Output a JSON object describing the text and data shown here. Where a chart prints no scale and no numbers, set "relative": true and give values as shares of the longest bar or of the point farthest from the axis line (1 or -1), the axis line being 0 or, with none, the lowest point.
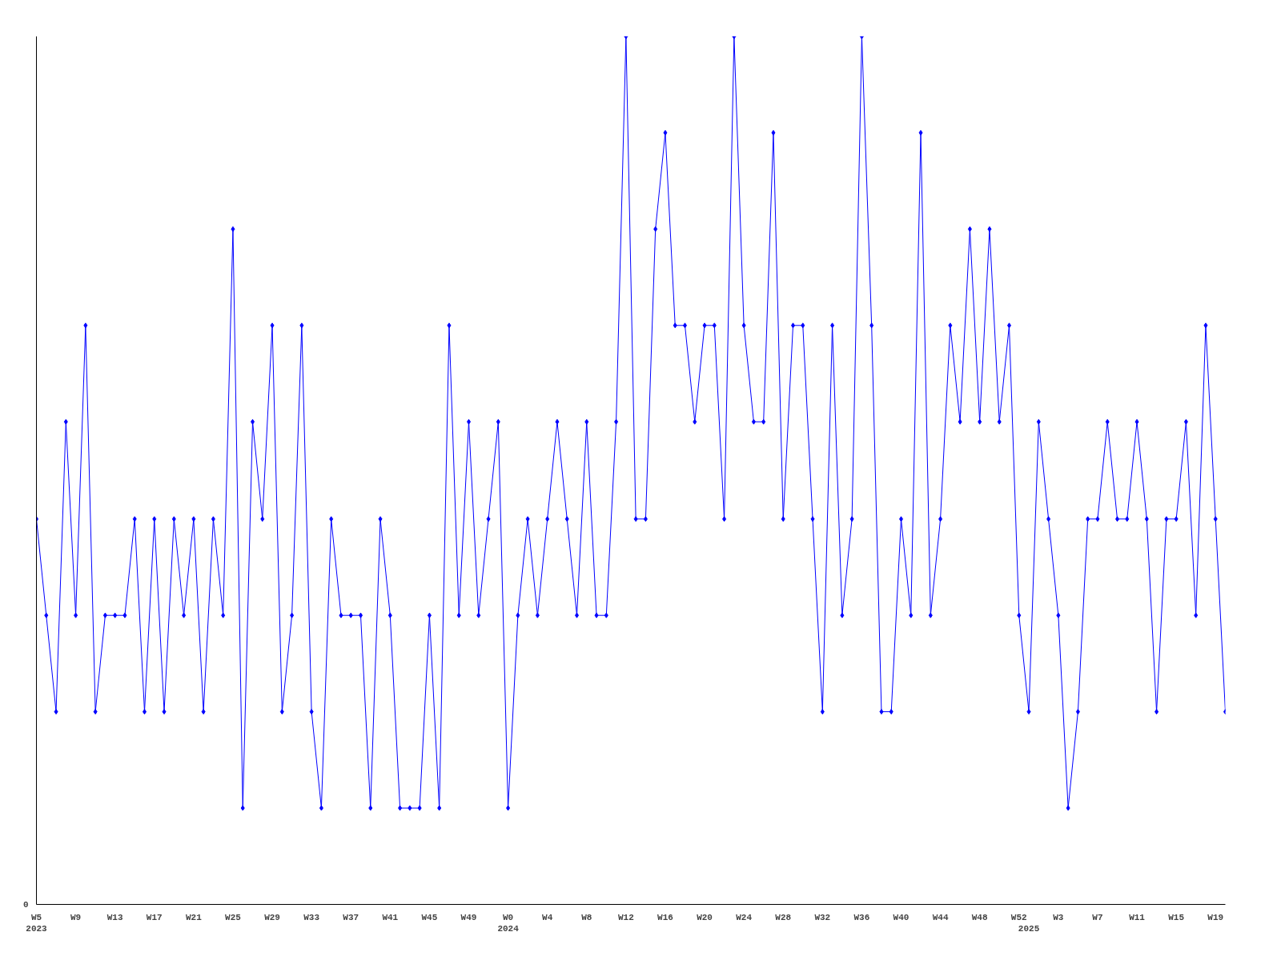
{
  "chart_data": {
    "type": "line",
    "relative": true,
    "annotations": [
      "0"
    ],
    "marker": "diamond",
    "line_style": "solid",
    "grid": false,
    "categories": [
      "W5\n2023",
      null,
      null,
      null,
      "W9",
      null,
      null,
      null,
      "W13",
      null,
      null,
      null,
      "W17",
      null,
      null,
      null,
      "W21",
      null,
      null,
      null,
      "W25",
      null,
      null,
      null,
      "W29",
      null,
      null,
      null,
      "W33",
      null,
      null,
      null,
      "W37",
      null,
      null,
      null,
      "W41",
      null,
      null,
      null,
      "W45",
      null,
      null,
      null,
      "W49",
      null,
      null,
      null,
      "W0\n2024",
      null,
      null,
      null,
      "W4",
      null,
      null,
      null,
      "W8",
      null,
      null,
      null,
      "W12",
      null,
      null,
      null,
      "W16",
      null,
      null,
      null,
      "W20",
      null,
      null,
      null,
      "W24",
      null,
      null,
      null,
      "W28",
      null,
      null,
      null,
      "W32",
      null,
      null,
      null,
      "W36",
      null,
      null,
      null,
      "W40",
      null,
      null,
      null,
      "W44",
      null,
      null,
      null,
      "W48",
      null,
      null,
      null,
      "W52",
      "\n2025",
      null,
      null,
      "W3",
      null,
      null,
      null,
      "W7",
      null,
      null,
      null,
      "W11",
      null,
      null,
      null,
      "W15",
      null,
      null,
      null,
      "W19",
      null
    ],
    "series": [
      {
        "color": "#0000ff",
        "values": [
          0.444,
          0.333,
          0.222,
          0.556,
          0.333,
          0.667,
          0.222,
          0.333,
          0.333,
          0.333,
          0.444,
          0.222,
          0.444,
          0.222,
          0.444,
          0.333,
          0.444,
          0.222,
          0.444,
          0.333,
          0.778,
          0.111,
          0.556,
          0.444,
          0.667,
          0.222,
          0.333,
          0.667,
          0.222,
          0.111,
          0.444,
          0.333,
          0.333,
          0.333,
          0.111,
          0.444,
          0.333,
          0.111,
          0.111,
          0.111,
          0.333,
          0.111,
          0.667,
          0.333,
          0.556,
          0.333,
          0.444,
          0.556,
          0.111,
          0.333,
          0.444,
          0.333,
          0.444,
          0.556,
          0.444,
          0.333,
          0.556,
          0.333,
          0.333,
          0.556,
          1,
          0.444,
          0.444,
          0.778,
          0.889,
          0.667,
          0.667,
          0.556,
          0.667,
          0.667,
          0.444,
          1,
          0.667,
          0.556,
          0.556,
          0.889,
          0.444,
          0.667,
          0.667,
          0.444,
          0.222,
          0.667,
          0.333,
          0.444,
          1,
          0.667,
          0.222,
          0.222,
          0.444,
          0.333,
          0.889,
          0.333,
          0.444,
          0.667,
          0.556,
          0.778,
          0.556,
          0.778,
          0.556,
          0.667,
          0.333,
          0.222,
          0.556,
          0.444,
          0.333,
          0.111,
          0.222,
          0.444,
          0.444,
          0.556,
          0.444,
          0.444,
          0.556,
          0.444,
          0.222,
          0.444,
          0.444,
          0.556,
          0.333,
          0.667,
          0.444,
          0.222
        ]
      }
    ]
  }
}
